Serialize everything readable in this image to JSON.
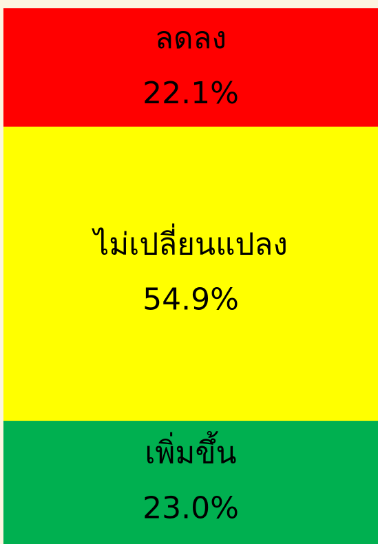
{
  "chart_data": {
    "type": "bar",
    "stacked": true,
    "categories": [
      null
    ],
    "series": [
      {
        "name": "ลดลง",
        "color": "#ff0000",
        "values": [
          22.1
        ],
        "value_labels": [
          "22.1%"
        ]
      },
      {
        "name": "ไม่เปลี่ยนแปลง",
        "color": "#ffff00",
        "values": [
          54.9
        ],
        "value_labels": [
          "54.9%"
        ]
      },
      {
        "name": "เพิ่มขึ้น",
        "color": "#00b050",
        "values": [
          23.0
        ],
        "value_labels": [
          "23.0%"
        ]
      }
    ],
    "ylim": [
      0,
      100
    ]
  }
}
